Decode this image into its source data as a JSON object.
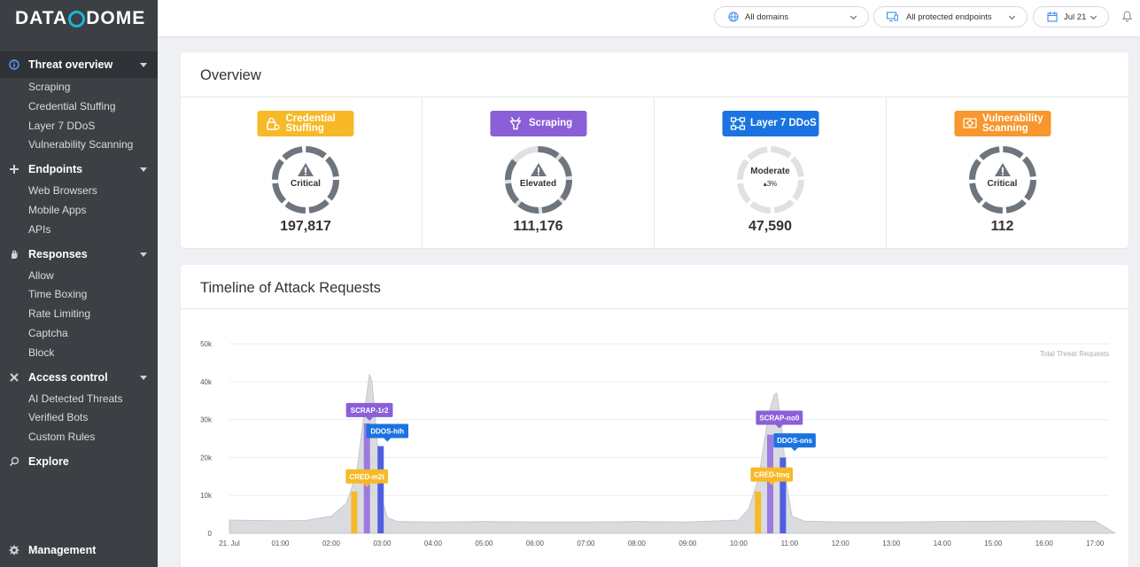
{
  "brand": {
    "logo_text_left": "DATA",
    "logo_text_right": "DOME"
  },
  "sidebar": {
    "sections": [
      {
        "label": "Threat overview",
        "icon": "info-circle-icon",
        "items": [
          "Scraping",
          "Credential Stuffing",
          "Layer 7 DDoS",
          "Vulnerability Scanning"
        ]
      },
      {
        "label": "Endpoints",
        "icon": "endpoints-icon",
        "items": [
          "Web Browsers",
          "Mobile Apps",
          "APIs"
        ]
      },
      {
        "label": "Responses",
        "icon": "hand-icon",
        "items": [
          "Allow",
          "Time Boxing",
          "Rate Limiting",
          "Captcha",
          "Block"
        ]
      },
      {
        "label": "Access control",
        "icon": "crossed-tools-icon",
        "items": [
          "AI Detected Threats",
          "Verified Bots",
          "Custom Rules"
        ]
      },
      {
        "label": "Explore",
        "icon": "explore-icon",
        "items": []
      }
    ],
    "management": {
      "label": "Management",
      "icon": "gear-icon"
    }
  },
  "topbar": {
    "domains": "All domains",
    "endpoints": "All protected endpoints",
    "date": "Jul 21"
  },
  "overview": {
    "title": "Overview",
    "metrics": [
      {
        "badge": "Credential Stuffing",
        "badge_line1": "Credential",
        "badge_line2": "Stuffing",
        "color": "#f7b928",
        "icon": "credential-lock-icon",
        "level": "Critical",
        "value": "197,817"
      },
      {
        "badge": "Scraping",
        "badge_line1": "Scraping",
        "badge_line2": "",
        "color": "#8a5fd8",
        "icon": "scraping-icon",
        "level": "Elevated",
        "value": "111,176"
      },
      {
        "badge": "Layer 7 DDoS",
        "badge_line1": "Layer 7 DDoS",
        "badge_line2": "",
        "color": "#1a73e0",
        "icon": "network-icon",
        "level": "Moderate",
        "sub": "3%",
        "value": "47,590"
      },
      {
        "badge": "Vulnerability Scanning",
        "badge_line1": "Vulnerability",
        "badge_line2": "Scanning",
        "color": "#f7972d",
        "icon": "vulnerability-icon",
        "level": "Critical",
        "value": "112"
      }
    ]
  },
  "timeline": {
    "title": "Timeline of Attack Requests",
    "legend_label": "Total Threat Requests"
  },
  "chart_data": {
    "type": "area",
    "title": "Timeline of Attack Requests",
    "x_tick_labels": [
      "21. Jul",
      "01:00",
      "02:00",
      "03:00",
      "04:00",
      "05:00",
      "06:00",
      "07:00",
      "08:00",
      "09:00",
      "10:00",
      "11:00",
      "12:00",
      "13:00",
      "14:00",
      "15:00",
      "16:00",
      "17:00"
    ],
    "y_tick_labels": [
      "0",
      "10k",
      "20k",
      "30k",
      "40k",
      "50k"
    ],
    "ylim": [
      0,
      50000
    ],
    "xlim_hours": [
      0,
      17.5
    ],
    "series": [
      {
        "name": "Total Threat Requests",
        "type": "area",
        "color": "#d3d5d9",
        "x": [
          0,
          0.5,
          1,
          1.5,
          2,
          2.3,
          2.5,
          2.6,
          2.7,
          2.75,
          2.8,
          2.9,
          3.0,
          3.1,
          3.3,
          4,
          5,
          6,
          7,
          8,
          9,
          10,
          10.2,
          10.4,
          10.5,
          10.6,
          10.7,
          10.75,
          10.85,
          10.95,
          11.05,
          11.3,
          12,
          13,
          14,
          15,
          16,
          17,
          17.4
        ],
        "y": [
          3500,
          3400,
          3300,
          3400,
          4500,
          8000,
          16000,
          27000,
          37000,
          42000,
          40000,
          25000,
          9000,
          4200,
          3100,
          3000,
          3100,
          3000,
          3000,
          3100,
          3000,
          3500,
          6500,
          15000,
          24000,
          32000,
          36500,
          37000,
          28000,
          12000,
          4500,
          3200,
          3000,
          3000,
          3100,
          3200,
          3300,
          3200,
          0
        ]
      }
    ],
    "bars": [
      {
        "name": "CRED-m2t",
        "x": 2.45,
        "value": 11000,
        "color": "#f7b928"
      },
      {
        "name": "SCRAP-1r2",
        "x": 2.7,
        "value": 29000,
        "color": "#9b7be0"
      },
      {
        "name": "DDOS-hih",
        "x": 2.97,
        "value": 23000,
        "color": "#4f5fe0"
      },
      {
        "name": "CRED-tmq",
        "x": 10.38,
        "value": 11000,
        "color": "#f7b928"
      },
      {
        "name": "SCRAP-no0",
        "x": 10.62,
        "value": 26000,
        "color": "#9b7be0"
      },
      {
        "name": "DDOS-ons",
        "x": 10.87,
        "value": 20000,
        "color": "#4f5fe0"
      }
    ],
    "annotations": [
      {
        "label": "SCRAP-1r2",
        "x": 2.75,
        "y": 32500,
        "color": "#8a5fd8"
      },
      {
        "label": "DDOS-hih",
        "x": 3.1,
        "y": 27000,
        "color": "#1a73e0"
      },
      {
        "label": "CRED-m2t",
        "x": 2.7,
        "y": 15000,
        "color": "#f7b928"
      },
      {
        "label": "SCRAP-no0",
        "x": 10.8,
        "y": 30500,
        "color": "#8a5fd8"
      },
      {
        "label": "DDOS-ons",
        "x": 11.1,
        "y": 24500,
        "color": "#1a73e0"
      },
      {
        "label": "CRED-tmq",
        "x": 10.65,
        "y": 15500,
        "color": "#f7b928"
      }
    ],
    "grid": true,
    "legend_placement": "top-right"
  }
}
